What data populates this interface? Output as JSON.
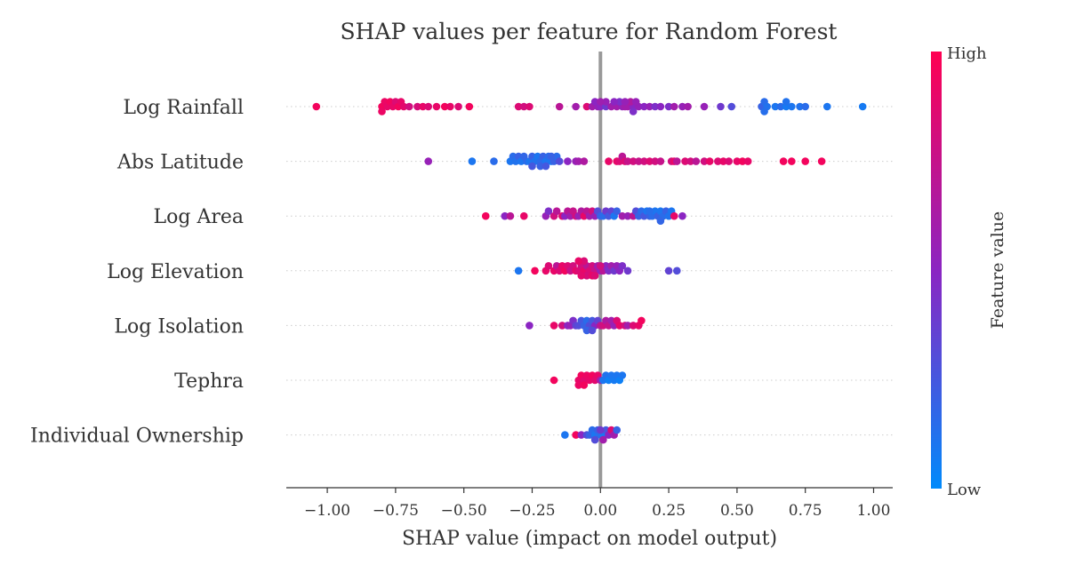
{
  "chart_data": {
    "type": "scatter",
    "subtype": "shap-beeswarm",
    "title": "SHAP values per feature for Random Forest",
    "xlabel": "SHAP value (impact on model output)",
    "xlim": [
      -1.15,
      1.07
    ],
    "xticks": [
      "−1.00",
      "−0.75",
      "−0.50",
      "−0.25",
      "0.00",
      "0.25",
      "0.50",
      "0.75",
      "1.00"
    ],
    "xtick_values": [
      -1.0,
      -0.75,
      -0.5,
      -0.25,
      0.0,
      0.25,
      0.5,
      0.75,
      1.0
    ],
    "colorbar": {
      "title": "Feature value",
      "high_label": "High",
      "low_label": "Low",
      "low_color": "#008afb",
      "mid_color": "#8b25c2",
      "high_color": "#ff0052"
    },
    "grid": "dotted horizontal per feature",
    "zero_line_color": "#999999",
    "features": [
      {
        "name": "Log Rainfall",
        "points": [
          [
            -1.04,
            0.95
          ],
          [
            -0.8,
            0.95
          ],
          [
            -0.79,
            0.92
          ],
          [
            -0.78,
            0.9
          ],
          [
            -0.77,
            0.95
          ],
          [
            -0.76,
            0.9
          ],
          [
            -0.8,
            0.92
          ],
          [
            -0.75,
            0.85
          ],
          [
            -0.74,
            0.95
          ],
          [
            -0.73,
            0.9
          ],
          [
            -0.72,
            0.88
          ],
          [
            -0.7,
            0.8
          ],
          [
            -0.67,
            0.82
          ],
          [
            -0.65,
            0.9
          ],
          [
            -0.63,
            0.85
          ],
          [
            -0.6,
            0.9
          ],
          [
            -0.57,
            0.95
          ],
          [
            -0.55,
            0.9
          ],
          [
            -0.52,
            0.85
          ],
          [
            -0.48,
            0.95
          ],
          [
            -0.3,
            0.85
          ],
          [
            -0.28,
            0.8
          ],
          [
            -0.26,
            0.85
          ],
          [
            -0.15,
            0.7
          ],
          [
            -0.09,
            0.6
          ],
          [
            -0.05,
            0.85
          ],
          [
            -0.03,
            0.6
          ],
          [
            -0.01,
            0.55
          ],
          [
            0.0,
            0.5
          ],
          [
            0.02,
            0.4
          ],
          [
            0.04,
            0.6
          ],
          [
            0.06,
            0.6
          ],
          [
            0.08,
            0.55
          ],
          [
            0.1,
            0.6
          ],
          [
            0.12,
            0.5
          ],
          [
            0.14,
            0.55
          ],
          [
            0.16,
            0.5
          ],
          [
            0.18,
            0.55
          ],
          [
            0.2,
            0.45
          ],
          [
            0.22,
            0.5
          ],
          [
            0.25,
            0.45
          ],
          [
            0.27,
            0.6
          ],
          [
            0.3,
            0.55
          ],
          [
            0.32,
            0.6
          ],
          [
            0.38,
            0.55
          ],
          [
            0.44,
            0.4
          ],
          [
            0.48,
            0.3
          ],
          [
            0.59,
            0.2
          ],
          [
            0.6,
            0.15
          ],
          [
            0.61,
            0.12
          ],
          [
            0.64,
            0.1
          ],
          [
            0.66,
            0.15
          ],
          [
            0.68,
            0.08
          ],
          [
            0.7,
            0.1
          ],
          [
            0.73,
            0.12
          ],
          [
            0.75,
            0.15
          ],
          [
            0.83,
            0.1
          ],
          [
            0.96,
            0.08
          ],
          [
            0.68,
            0.12
          ],
          [
            0.6,
            0.14
          ],
          [
            0.09,
            0.6
          ],
          [
            0.11,
            0.65
          ],
          [
            0.13,
            0.55
          ],
          [
            0.07,
            0.45
          ],
          [
            0.02,
            0.55
          ],
          [
            -0.02,
            0.5
          ],
          [
            0.0,
            0.58
          ],
          [
            0.05,
            0.5
          ],
          [
            0.09,
            0.55
          ],
          [
            0.12,
            0.45
          ]
        ]
      },
      {
        "name": "Abs Latitude",
        "points": [
          [
            -0.63,
            0.55
          ],
          [
            -0.47,
            0.1
          ],
          [
            -0.39,
            0.15
          ],
          [
            -0.33,
            0.1
          ],
          [
            -0.32,
            0.15
          ],
          [
            -0.31,
            0.12
          ],
          [
            -0.3,
            0.2
          ],
          [
            -0.29,
            0.1
          ],
          [
            -0.27,
            0.15
          ],
          [
            -0.26,
            0.1
          ],
          [
            -0.25,
            0.2
          ],
          [
            -0.24,
            0.12
          ],
          [
            -0.23,
            0.1
          ],
          [
            -0.22,
            0.15
          ],
          [
            -0.21,
            0.2
          ],
          [
            -0.2,
            0.1
          ],
          [
            -0.19,
            0.15
          ],
          [
            -0.18,
            0.1
          ],
          [
            -0.17,
            0.2
          ],
          [
            -0.16,
            0.15
          ],
          [
            -0.15,
            0.3
          ],
          [
            -0.12,
            0.5
          ],
          [
            -0.09,
            0.55
          ],
          [
            -0.08,
            0.6
          ],
          [
            -0.06,
            0.65
          ],
          [
            0.03,
            0.9
          ],
          [
            0.06,
            0.9
          ],
          [
            0.07,
            0.85
          ],
          [
            0.08,
            0.7
          ],
          [
            0.09,
            0.85
          ],
          [
            0.1,
            0.75
          ],
          [
            0.12,
            0.8
          ],
          [
            0.14,
            0.75
          ],
          [
            0.16,
            0.8
          ],
          [
            0.18,
            0.85
          ],
          [
            0.2,
            0.8
          ],
          [
            0.22,
            0.75
          ],
          [
            0.26,
            0.8
          ],
          [
            0.27,
            0.9
          ],
          [
            0.28,
            0.7
          ],
          [
            0.31,
            0.85
          ],
          [
            0.33,
            0.8
          ],
          [
            0.35,
            0.7
          ],
          [
            0.38,
            0.8
          ],
          [
            0.4,
            0.9
          ],
          [
            0.43,
            0.85
          ],
          [
            0.45,
            0.9
          ],
          [
            0.47,
            0.85
          ],
          [
            0.5,
            0.9
          ],
          [
            0.52,
            0.95
          ],
          [
            0.54,
            0.9
          ],
          [
            0.67,
            0.95
          ],
          [
            0.7,
            0.95
          ],
          [
            0.75,
            0.95
          ],
          [
            0.81,
            0.95
          ],
          [
            -0.22,
            0.2
          ],
          [
            -0.2,
            0.25
          ],
          [
            -0.25,
            0.25
          ],
          [
            -0.18,
            0.2
          ],
          [
            -0.28,
            0.18
          ]
        ]
      },
      {
        "name": "Log Area",
        "points": [
          [
            -0.42,
            0.95
          ],
          [
            -0.35,
            0.5
          ],
          [
            -0.33,
            0.7
          ],
          [
            -0.28,
            0.9
          ],
          [
            -0.2,
            0.55
          ],
          [
            -0.19,
            0.45
          ],
          [
            -0.17,
            0.8
          ],
          [
            -0.16,
            0.7
          ],
          [
            -0.14,
            0.85
          ],
          [
            -0.13,
            0.5
          ],
          [
            -0.12,
            0.7
          ],
          [
            -0.11,
            0.6
          ],
          [
            -0.1,
            0.75
          ],
          [
            -0.09,
            0.8
          ],
          [
            -0.08,
            0.55
          ],
          [
            -0.07,
            0.65
          ],
          [
            -0.06,
            0.9
          ],
          [
            -0.05,
            0.7
          ],
          [
            -0.04,
            0.6
          ],
          [
            -0.03,
            0.8
          ],
          [
            -0.02,
            0.55
          ],
          [
            -0.01,
            0.3
          ],
          [
            0.0,
            0.2
          ],
          [
            0.01,
            0.15
          ],
          [
            0.02,
            0.4
          ],
          [
            0.03,
            0.25
          ],
          [
            0.04,
            0.35
          ],
          [
            0.05,
            0.1
          ],
          [
            0.06,
            0.2
          ],
          [
            0.08,
            0.6
          ],
          [
            0.1,
            0.55
          ],
          [
            0.12,
            0.7
          ],
          [
            0.13,
            0.3
          ],
          [
            0.14,
            0.2
          ],
          [
            0.15,
            0.15
          ],
          [
            0.16,
            0.25
          ],
          [
            0.17,
            0.1
          ],
          [
            0.18,
            0.2
          ],
          [
            0.19,
            0.15
          ],
          [
            0.2,
            0.1
          ],
          [
            0.21,
            0.2
          ],
          [
            0.22,
            0.1
          ],
          [
            0.23,
            0.15
          ],
          [
            0.24,
            0.2
          ],
          [
            0.25,
            0.12
          ],
          [
            0.26,
            0.1
          ],
          [
            0.27,
            0.9
          ],
          [
            0.3,
            0.5
          ],
          [
            0.22,
            0.18
          ],
          [
            0.18,
            0.14
          ]
        ]
      },
      {
        "name": "Log Elevation",
        "points": [
          [
            -0.3,
            0.1
          ],
          [
            -0.24,
            0.95
          ],
          [
            -0.2,
            0.9
          ],
          [
            -0.19,
            0.85
          ],
          [
            -0.17,
            0.9
          ],
          [
            -0.16,
            0.7
          ],
          [
            -0.15,
            0.85
          ],
          [
            -0.14,
            0.9
          ],
          [
            -0.13,
            0.95
          ],
          [
            -0.12,
            0.85
          ],
          [
            -0.11,
            0.75
          ],
          [
            -0.1,
            0.8
          ],
          [
            -0.09,
            0.9
          ],
          [
            -0.08,
            0.85
          ],
          [
            -0.07,
            0.8
          ],
          [
            -0.06,
            0.9
          ],
          [
            -0.05,
            0.7
          ],
          [
            -0.04,
            0.85
          ],
          [
            -0.03,
            0.8
          ],
          [
            -0.02,
            0.75
          ],
          [
            -0.01,
            0.6
          ],
          [
            0.0,
            0.55
          ],
          [
            0.01,
            0.7
          ],
          [
            0.02,
            0.5
          ],
          [
            0.03,
            0.45
          ],
          [
            0.04,
            0.6
          ],
          [
            0.05,
            0.4
          ],
          [
            0.06,
            0.55
          ],
          [
            0.07,
            0.5
          ],
          [
            0.08,
            0.45
          ],
          [
            0.1,
            0.4
          ],
          [
            0.25,
            0.35
          ],
          [
            0.28,
            0.3
          ],
          [
            -0.05,
            0.82
          ],
          [
            -0.07,
            0.88
          ],
          [
            -0.03,
            0.9
          ],
          [
            -0.06,
            0.84
          ],
          [
            -0.08,
            0.9
          ],
          [
            -0.02,
            0.85
          ],
          [
            0.0,
            0.8
          ]
        ]
      },
      {
        "name": "Log Isolation",
        "points": [
          [
            -0.26,
            0.5
          ],
          [
            -0.17,
            0.9
          ],
          [
            -0.14,
            0.8
          ],
          [
            -0.12,
            0.5
          ],
          [
            -0.11,
            0.55
          ],
          [
            -0.1,
            0.45
          ],
          [
            -0.09,
            0.35
          ],
          [
            -0.08,
            0.3
          ],
          [
            -0.07,
            0.25
          ],
          [
            -0.06,
            0.2
          ],
          [
            -0.05,
            0.15
          ],
          [
            -0.04,
            0.3
          ],
          [
            -0.03,
            0.25
          ],
          [
            -0.02,
            0.5
          ],
          [
            -0.01,
            0.35
          ],
          [
            0.0,
            0.7
          ],
          [
            0.01,
            0.8
          ],
          [
            0.02,
            0.65
          ],
          [
            0.03,
            0.75
          ],
          [
            0.04,
            0.6
          ],
          [
            0.05,
            0.55
          ],
          [
            0.06,
            0.85
          ],
          [
            0.07,
            0.9
          ],
          [
            0.09,
            0.8
          ],
          [
            0.1,
            0.6
          ],
          [
            0.12,
            0.85
          ],
          [
            0.14,
            0.9
          ],
          [
            0.15,
            0.95
          ],
          [
            -0.05,
            0.2
          ],
          [
            -0.03,
            0.3
          ]
        ]
      },
      {
        "name": "Tephra",
        "points": [
          [
            -0.17,
            0.95
          ],
          [
            -0.08,
            0.9
          ],
          [
            -0.07,
            0.95
          ],
          [
            -0.06,
            0.88
          ],
          [
            -0.05,
            0.92
          ],
          [
            -0.04,
            0.9
          ],
          [
            -0.03,
            0.95
          ],
          [
            -0.02,
            0.88
          ],
          [
            -0.01,
            0.9
          ],
          [
            0.0,
            0.6
          ],
          [
            0.01,
            0.1
          ],
          [
            0.02,
            0.12
          ],
          [
            0.03,
            0.05
          ],
          [
            0.04,
            0.1
          ],
          [
            0.05,
            0.08
          ],
          [
            0.06,
            0.1
          ],
          [
            0.07,
            0.05
          ],
          [
            0.08,
            0.1
          ],
          [
            -0.08,
            0.92
          ],
          [
            -0.06,
            0.95
          ]
        ]
      },
      {
        "name": "Individual Ownership",
        "points": [
          [
            -0.13,
            0.1
          ],
          [
            -0.09,
            0.95
          ],
          [
            -0.07,
            0.5
          ],
          [
            -0.05,
            0.3
          ],
          [
            -0.04,
            0.2
          ],
          [
            -0.03,
            0.15
          ],
          [
            -0.02,
            0.1
          ],
          [
            -0.01,
            0.2
          ],
          [
            0.0,
            0.15
          ],
          [
            0.01,
            0.1
          ],
          [
            0.02,
            0.25
          ],
          [
            0.03,
            0.5
          ],
          [
            0.04,
            0.85
          ],
          [
            0.05,
            0.6
          ],
          [
            0.06,
            0.2
          ],
          [
            -0.02,
            0.3
          ],
          [
            0.0,
            0.4
          ],
          [
            0.01,
            0.6
          ]
        ]
      }
    ]
  }
}
